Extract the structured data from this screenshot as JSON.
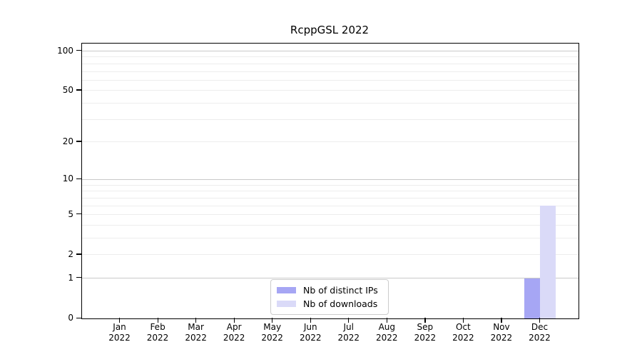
{
  "chart_data": {
    "type": "bar",
    "title": "RcppGSL 2022",
    "x_categories": [
      {
        "month": "Jan",
        "year": "2022"
      },
      {
        "month": "Feb",
        "year": "2022"
      },
      {
        "month": "Mar",
        "year": "2022"
      },
      {
        "month": "Apr",
        "year": "2022"
      },
      {
        "month": "May",
        "year": "2022"
      },
      {
        "month": "Jun",
        "year": "2022"
      },
      {
        "month": "Jul",
        "year": "2022"
      },
      {
        "month": "Aug",
        "year": "2022"
      },
      {
        "month": "Sep",
        "year": "2022"
      },
      {
        "month": "Oct",
        "year": "2022"
      },
      {
        "month": "Nov",
        "year": "2022"
      },
      {
        "month": "Dec",
        "year": "2022"
      }
    ],
    "series": [
      {
        "name": "Nb of distinct IPs",
        "color": "#a6a6f4",
        "values": [
          0,
          0,
          0,
          0,
          0,
          0,
          0,
          0,
          0,
          0,
          0,
          1
        ]
      },
      {
        "name": "Nb of downloads",
        "color": "#dadaf8",
        "values": [
          0,
          0,
          0,
          0,
          0,
          0,
          0,
          0,
          0,
          0,
          0,
          6
        ]
      }
    ],
    "y_axis": {
      "scale": "log1p",
      "ticks": [
        0,
        1,
        2,
        5,
        10,
        20,
        50,
        100
      ],
      "major_gridlines": [
        1,
        10,
        100
      ],
      "minor_gridlines": [
        2,
        3,
        4,
        5,
        6,
        7,
        8,
        9,
        20,
        30,
        40,
        50,
        60,
        70,
        80,
        90
      ],
      "max": 115
    },
    "legend": {
      "position": "lower center",
      "entries": [
        "Nb of distinct IPs",
        "Nb of downloads"
      ]
    },
    "grid": true,
    "colors": {
      "axis": "#000000",
      "major_grid": "#c9c9c9",
      "minor_grid": "#ededed"
    }
  }
}
